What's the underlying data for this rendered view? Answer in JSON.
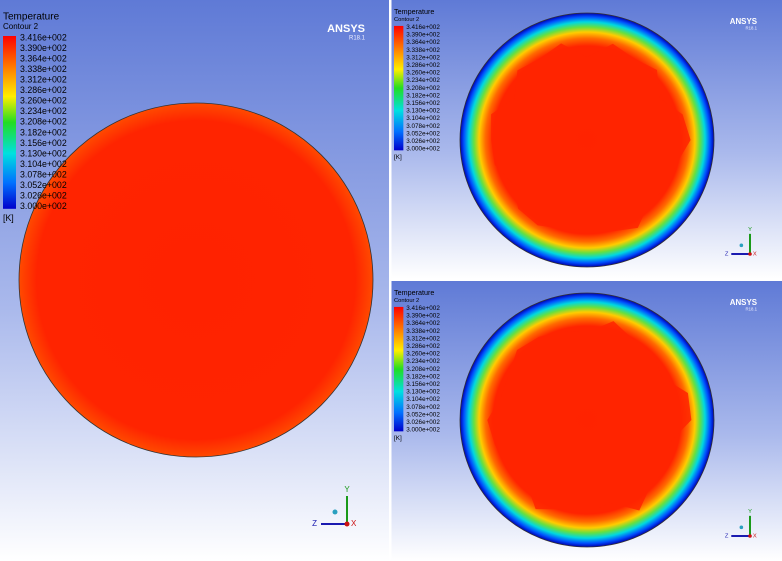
{
  "panels": [
    {
      "legend": {
        "title": "Temperature",
        "subtitle": "Contour 2",
        "labels": [
          "3.416e+002",
          "3.390e+002",
          "3.364e+002",
          "3.338e+002",
          "3.312e+002",
          "3.286e+002",
          "3.260e+002",
          "3.234e+002",
          "3.208e+002",
          "3.182e+002",
          "3.156e+002",
          "3.130e+002",
          "3.104e+002",
          "3.078e+002",
          "3.052e+002",
          "3.026e+002",
          "3.000e+002"
        ],
        "unit": "[K]"
      },
      "logo": "ANSYS",
      "version": "R18.1",
      "axes": {
        "y": "Y",
        "z": "Z",
        "x": "X"
      }
    },
    {
      "legend": {
        "title": "Temperature",
        "subtitle": "Contour 2",
        "labels": [
          "3.416e+002",
          "3.390e+002",
          "3.364e+002",
          "3.338e+002",
          "3.312e+002",
          "3.286e+002",
          "3.260e+002",
          "3.234e+002",
          "3.208e+002",
          "3.182e+002",
          "3.156e+002",
          "3.130e+002",
          "3.104e+002",
          "3.078e+002",
          "3.052e+002",
          "3.026e+002",
          "3.000e+002"
        ],
        "unit": "[K]"
      },
      "logo": "ANSYS",
      "version": "R18.1",
      "axes": {
        "y": "Y",
        "z": "Z",
        "x": "X"
      }
    },
    {
      "legend": {
        "title": "Temperature",
        "subtitle": "Contour 2",
        "labels": [
          "3.416e+002",
          "3.390e+002",
          "3.364e+002",
          "3.338e+002",
          "3.312e+002",
          "3.286e+002",
          "3.260e+002",
          "3.234e+002",
          "3.208e+002",
          "3.182e+002",
          "3.156e+002",
          "3.130e+002",
          "3.104e+002",
          "3.078e+002",
          "3.052e+002",
          "3.026e+002",
          "3.000e+002"
        ],
        "unit": "[K]"
      },
      "logo": "ANSYS",
      "version": "R18.1",
      "axes": {
        "y": "Y",
        "z": "Z",
        "x": "X"
      }
    }
  ]
}
